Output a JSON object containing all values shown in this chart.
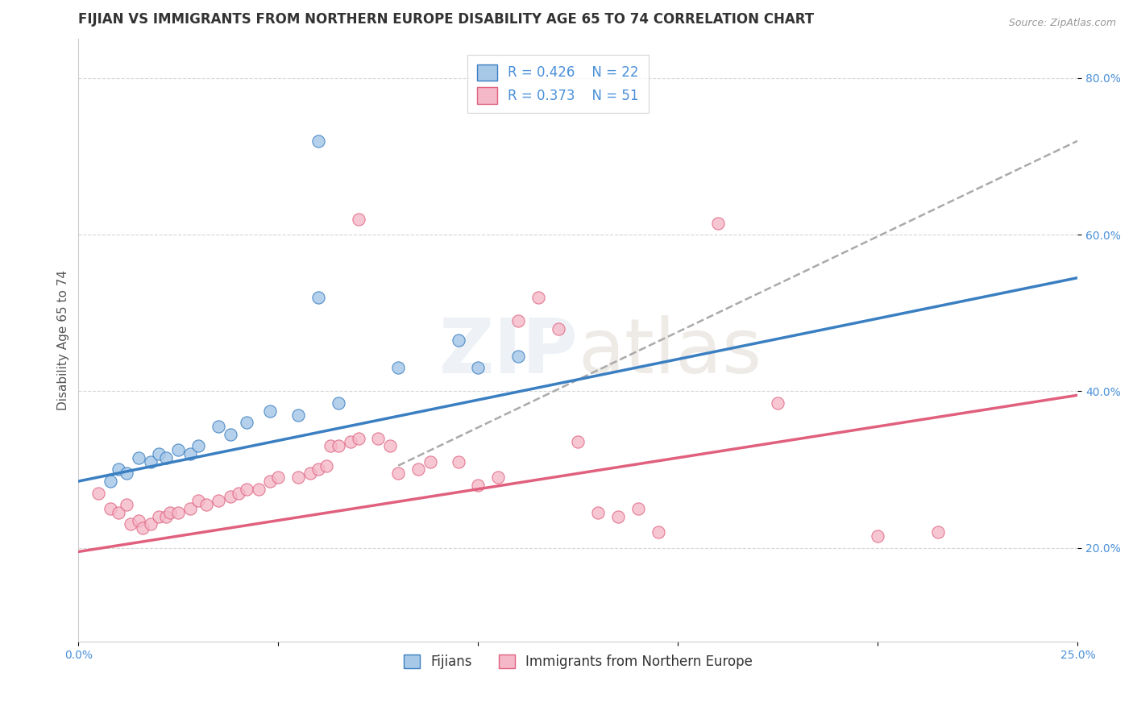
{
  "title": "FIJIAN VS IMMIGRANTS FROM NORTHERN EUROPE DISABILITY AGE 65 TO 74 CORRELATION CHART",
  "source": "Source: ZipAtlas.com",
  "ylabel": "Disability Age 65 to 74",
  "xlim": [
    0.0,
    0.25
  ],
  "ylim": [
    0.08,
    0.85
  ],
  "xtick_positions": [
    0.0,
    0.05,
    0.1,
    0.15,
    0.2,
    0.25
  ],
  "xtick_labels": [
    "0.0%",
    "",
    "",
    "",
    "",
    "25.0%"
  ],
  "ytick_positions": [
    0.2,
    0.4,
    0.6,
    0.8
  ],
  "ytick_labels": [
    "20.0%",
    "40.0%",
    "60.0%",
    "80.0%"
  ],
  "fijian_R": 0.426,
  "fijian_N": 22,
  "immigrant_R": 0.373,
  "immigrant_N": 51,
  "blue_scatter_color": "#a8c8e8",
  "blue_line_color": "#3a7fc1",
  "pink_scatter_color": "#f4b8c8",
  "pink_line_color": "#e0607e",
  "dash_line_color": "#aaaaaa",
  "blue_scatter": [
    [
      0.008,
      0.285
    ],
    [
      0.01,
      0.3
    ],
    [
      0.012,
      0.295
    ],
    [
      0.015,
      0.315
    ],
    [
      0.018,
      0.31
    ],
    [
      0.02,
      0.32
    ],
    [
      0.022,
      0.315
    ],
    [
      0.025,
      0.325
    ],
    [
      0.028,
      0.32
    ],
    [
      0.03,
      0.33
    ],
    [
      0.035,
      0.355
    ],
    [
      0.038,
      0.345
    ],
    [
      0.042,
      0.36
    ],
    [
      0.048,
      0.375
    ],
    [
      0.055,
      0.37
    ],
    [
      0.065,
      0.385
    ],
    [
      0.06,
      0.52
    ],
    [
      0.08,
      0.43
    ],
    [
      0.095,
      0.465
    ],
    [
      0.1,
      0.43
    ],
    [
      0.11,
      0.445
    ],
    [
      0.06,
      0.72
    ]
  ],
  "pink_scatter": [
    [
      0.005,
      0.27
    ],
    [
      0.008,
      0.25
    ],
    [
      0.01,
      0.245
    ],
    [
      0.012,
      0.255
    ],
    [
      0.013,
      0.23
    ],
    [
      0.015,
      0.235
    ],
    [
      0.016,
      0.225
    ],
    [
      0.018,
      0.23
    ],
    [
      0.02,
      0.24
    ],
    [
      0.022,
      0.24
    ],
    [
      0.023,
      0.245
    ],
    [
      0.025,
      0.245
    ],
    [
      0.028,
      0.25
    ],
    [
      0.03,
      0.26
    ],
    [
      0.032,
      0.255
    ],
    [
      0.035,
      0.26
    ],
    [
      0.038,
      0.265
    ],
    [
      0.04,
      0.27
    ],
    [
      0.042,
      0.275
    ],
    [
      0.045,
      0.275
    ],
    [
      0.048,
      0.285
    ],
    [
      0.05,
      0.29
    ],
    [
      0.055,
      0.29
    ],
    [
      0.058,
      0.295
    ],
    [
      0.06,
      0.3
    ],
    [
      0.062,
      0.305
    ],
    [
      0.063,
      0.33
    ],
    [
      0.065,
      0.33
    ],
    [
      0.068,
      0.335
    ],
    [
      0.07,
      0.34
    ],
    [
      0.075,
      0.34
    ],
    [
      0.078,
      0.33
    ],
    [
      0.08,
      0.295
    ],
    [
      0.085,
      0.3
    ],
    [
      0.088,
      0.31
    ],
    [
      0.095,
      0.31
    ],
    [
      0.1,
      0.28
    ],
    [
      0.105,
      0.29
    ],
    [
      0.11,
      0.49
    ],
    [
      0.115,
      0.52
    ],
    [
      0.12,
      0.48
    ],
    [
      0.125,
      0.335
    ],
    [
      0.13,
      0.245
    ],
    [
      0.135,
      0.24
    ],
    [
      0.14,
      0.25
    ],
    [
      0.07,
      0.62
    ],
    [
      0.145,
      0.22
    ],
    [
      0.175,
      0.385
    ],
    [
      0.2,
      0.215
    ],
    [
      0.215,
      0.22
    ],
    [
      0.16,
      0.615
    ]
  ],
  "background_color": "#ffffff",
  "grid_color": "#cccccc",
  "title_fontsize": 12,
  "axis_label_fontsize": 11,
  "tick_fontsize": 10,
  "legend_fontsize": 12
}
